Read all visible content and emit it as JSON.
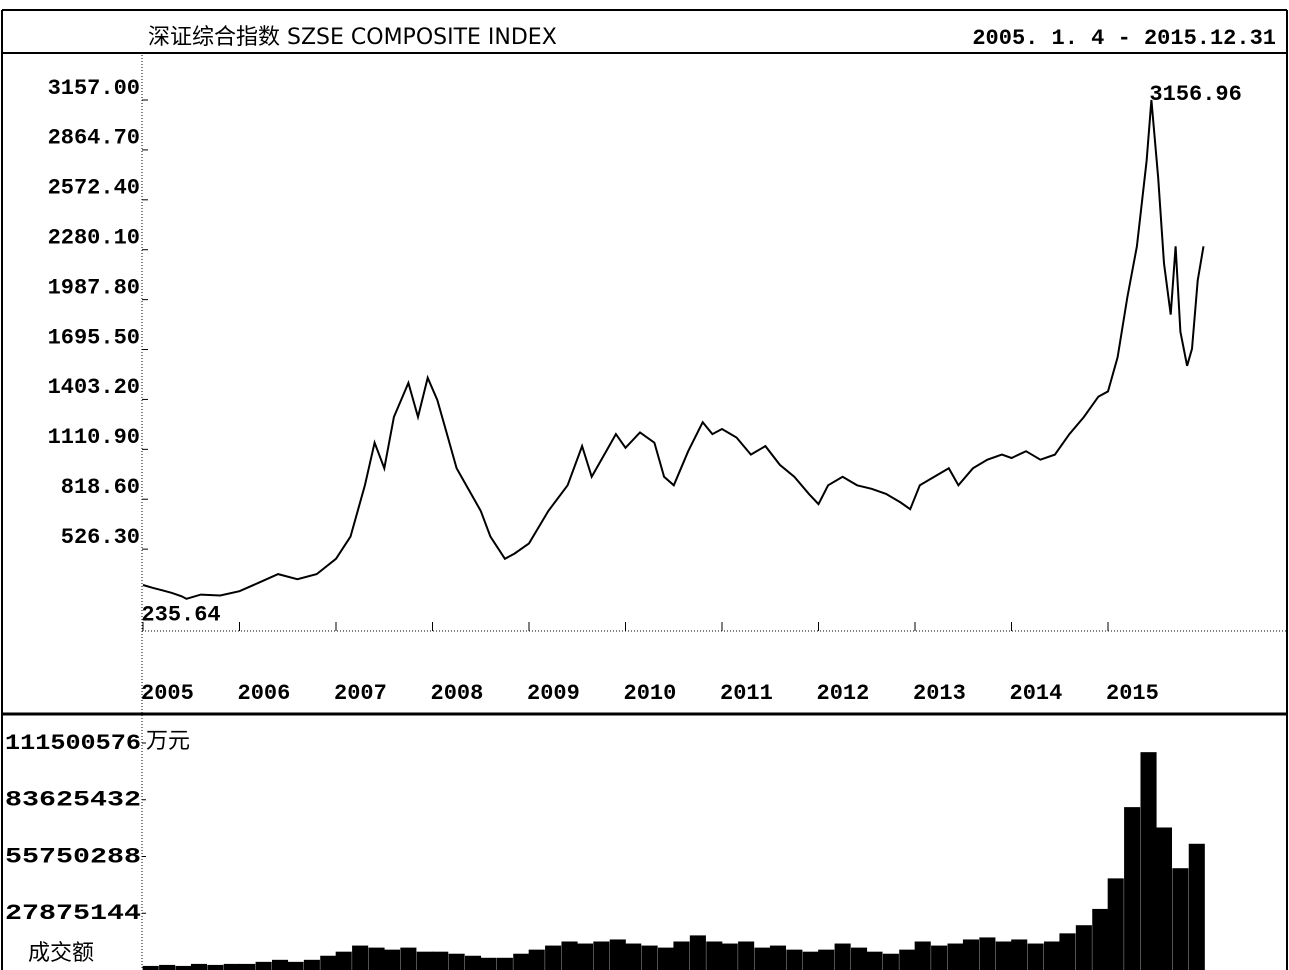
{
  "chart_data": [
    {
      "type": "line",
      "title": "深证综合指数 SZSE COMPOSITE INDEX",
      "subtitle": "2005. 1. 4 - 2015.12.31",
      "annotations": [
        "3156.96",
        "235.64"
      ],
      "color": "#000000",
      "xlim": [
        2005,
        2016
      ],
      "xticks": [
        2005,
        2006,
        2007,
        2008,
        2009,
        2010,
        2011,
        2012,
        2013,
        2014,
        2015
      ],
      "ylim": [
        0,
        3157
      ],
      "yticks": [
        {
          "value": 3157,
          "label": "3157.00"
        },
        {
          "value": 2864.7,
          "label": "2864.70"
        },
        {
          "value": 2572.4,
          "label": "2572.40"
        },
        {
          "value": 2280.1,
          "label": "2280.10"
        },
        {
          "value": 1987.8,
          "label": "1987.80"
        },
        {
          "value": 1695.5,
          "label": "1695.50"
        },
        {
          "value": 1403.2,
          "label": "1403.20"
        },
        {
          "value": 1110.9,
          "label": "1110.90"
        },
        {
          "value": 818.6,
          "label": "818.60"
        },
        {
          "value": 526.3,
          "label": "526.30"
        }
      ],
      "x": [
        2005.0,
        2005.1,
        2005.2,
        2005.3,
        2005.4,
        2005.45,
        2005.6,
        2005.8,
        2006.0,
        2006.2,
        2006.4,
        2006.6,
        2006.8,
        2007.0,
        2007.15,
        2007.3,
        2007.4,
        2007.5,
        2007.6,
        2007.75,
        2007.85,
        2007.95,
        2008.05,
        2008.15,
        2008.25,
        2008.4,
        2008.5,
        2008.6,
        2008.75,
        2008.85,
        2009.0,
        2009.2,
        2009.4,
        2009.55,
        2009.65,
        2009.8,
        2009.9,
        2010.0,
        2010.15,
        2010.3,
        2010.4,
        2010.5,
        2010.65,
        2010.8,
        2010.9,
        2011.0,
        2011.15,
        2011.3,
        2011.45,
        2011.6,
        2011.75,
        2011.9,
        2012.0,
        2012.1,
        2012.25,
        2012.4,
        2012.55,
        2012.7,
        2012.85,
        2012.95,
        2013.05,
        2013.2,
        2013.35,
        2013.45,
        2013.6,
        2013.75,
        2013.9,
        2014.0,
        2014.15,
        2014.3,
        2014.45,
        2014.6,
        2014.75,
        2014.9,
        2015.0,
        2015.1,
        2015.2,
        2015.3,
        2015.4,
        2015.45,
        2015.52,
        2015.58,
        2015.65,
        2015.7,
        2015.75,
        2015.82,
        2015.87,
        2015.93,
        2015.99
      ],
      "values": [
        316,
        300,
        285,
        270,
        250,
        235.64,
        260,
        255,
        280,
        330,
        380,
        350,
        380,
        470,
        600,
        900,
        1150,
        1000,
        1300,
        1500,
        1300,
        1530,
        1400,
        1200,
        1000,
        850,
        750,
        600,
        470,
        500,
        560,
        750,
        900,
        1130,
        950,
        1100,
        1200,
        1120,
        1210,
        1150,
        950,
        900,
        1100,
        1270,
        1200,
        1230,
        1180,
        1080,
        1130,
        1020,
        950,
        850,
        790,
        900,
        950,
        900,
        880,
        850,
        800,
        760,
        900,
        950,
        1000,
        900,
        1000,
        1050,
        1080,
        1060,
        1100,
        1050,
        1080,
        1200,
        1300,
        1420,
        1450,
        1650,
        2000,
        2300,
        2800,
        3156.96,
        2700,
        2200,
        1900,
        2300,
        1800,
        1600,
        1700,
        2100,
        2300
      ]
    },
    {
      "type": "bar",
      "unit": "万元",
      "ylabel": "成交额",
      "color": "#000000",
      "xlim": [
        2005,
        2016
      ],
      "ylim": [
        0,
        111500576
      ],
      "yticks": [
        111500576,
        83625432,
        55750288,
        27875144
      ],
      "x": [
        2005.08,
        2005.25,
        2005.42,
        2005.58,
        2005.75,
        2005.92,
        2006.08,
        2006.25,
        2006.42,
        2006.58,
        2006.75,
        2006.92,
        2007.08,
        2007.25,
        2007.42,
        2007.58,
        2007.75,
        2007.92,
        2008.08,
        2008.25,
        2008.42,
        2008.58,
        2008.75,
        2008.92,
        2009.08,
        2009.25,
        2009.42,
        2009.58,
        2009.75,
        2009.92,
        2010.08,
        2010.25,
        2010.42,
        2010.58,
        2010.75,
        2010.92,
        2011.08,
        2011.25,
        2011.42,
        2011.58,
        2011.75,
        2011.92,
        2012.08,
        2012.25,
        2012.42,
        2012.58,
        2012.75,
        2012.92,
        2013.08,
        2013.25,
        2013.42,
        2013.58,
        2013.75,
        2013.92,
        2014.08,
        2014.25,
        2014.42,
        2014.58,
        2014.75,
        2014.92,
        2015.08,
        2015.25,
        2015.42,
        2015.58,
        2015.75,
        2015.92
      ],
      "values": [
        2000000,
        2500000,
        2000000,
        3000000,
        2500000,
        3000000,
        3000000,
        4000000,
        5000000,
        4000000,
        5000000,
        7000000,
        9000000,
        12000000,
        11000000,
        10000000,
        11000000,
        9000000,
        9000000,
        8000000,
        7000000,
        6000000,
        6000000,
        8000000,
        10000000,
        12000000,
        14000000,
        13000000,
        14000000,
        15000000,
        13000000,
        12000000,
        11000000,
        14000000,
        17000000,
        14000000,
        13000000,
        14000000,
        11000000,
        12000000,
        10000000,
        9000000,
        10000000,
        13000000,
        11000000,
        9000000,
        8000000,
        10000000,
        14000000,
        12000000,
        13000000,
        15000000,
        16000000,
        14000000,
        15000000,
        13000000,
        14000000,
        18000000,
        22000000,
        30000000,
        45000000,
        80000000,
        107000000,
        70000000,
        50000000,
        62000000
      ]
    }
  ]
}
